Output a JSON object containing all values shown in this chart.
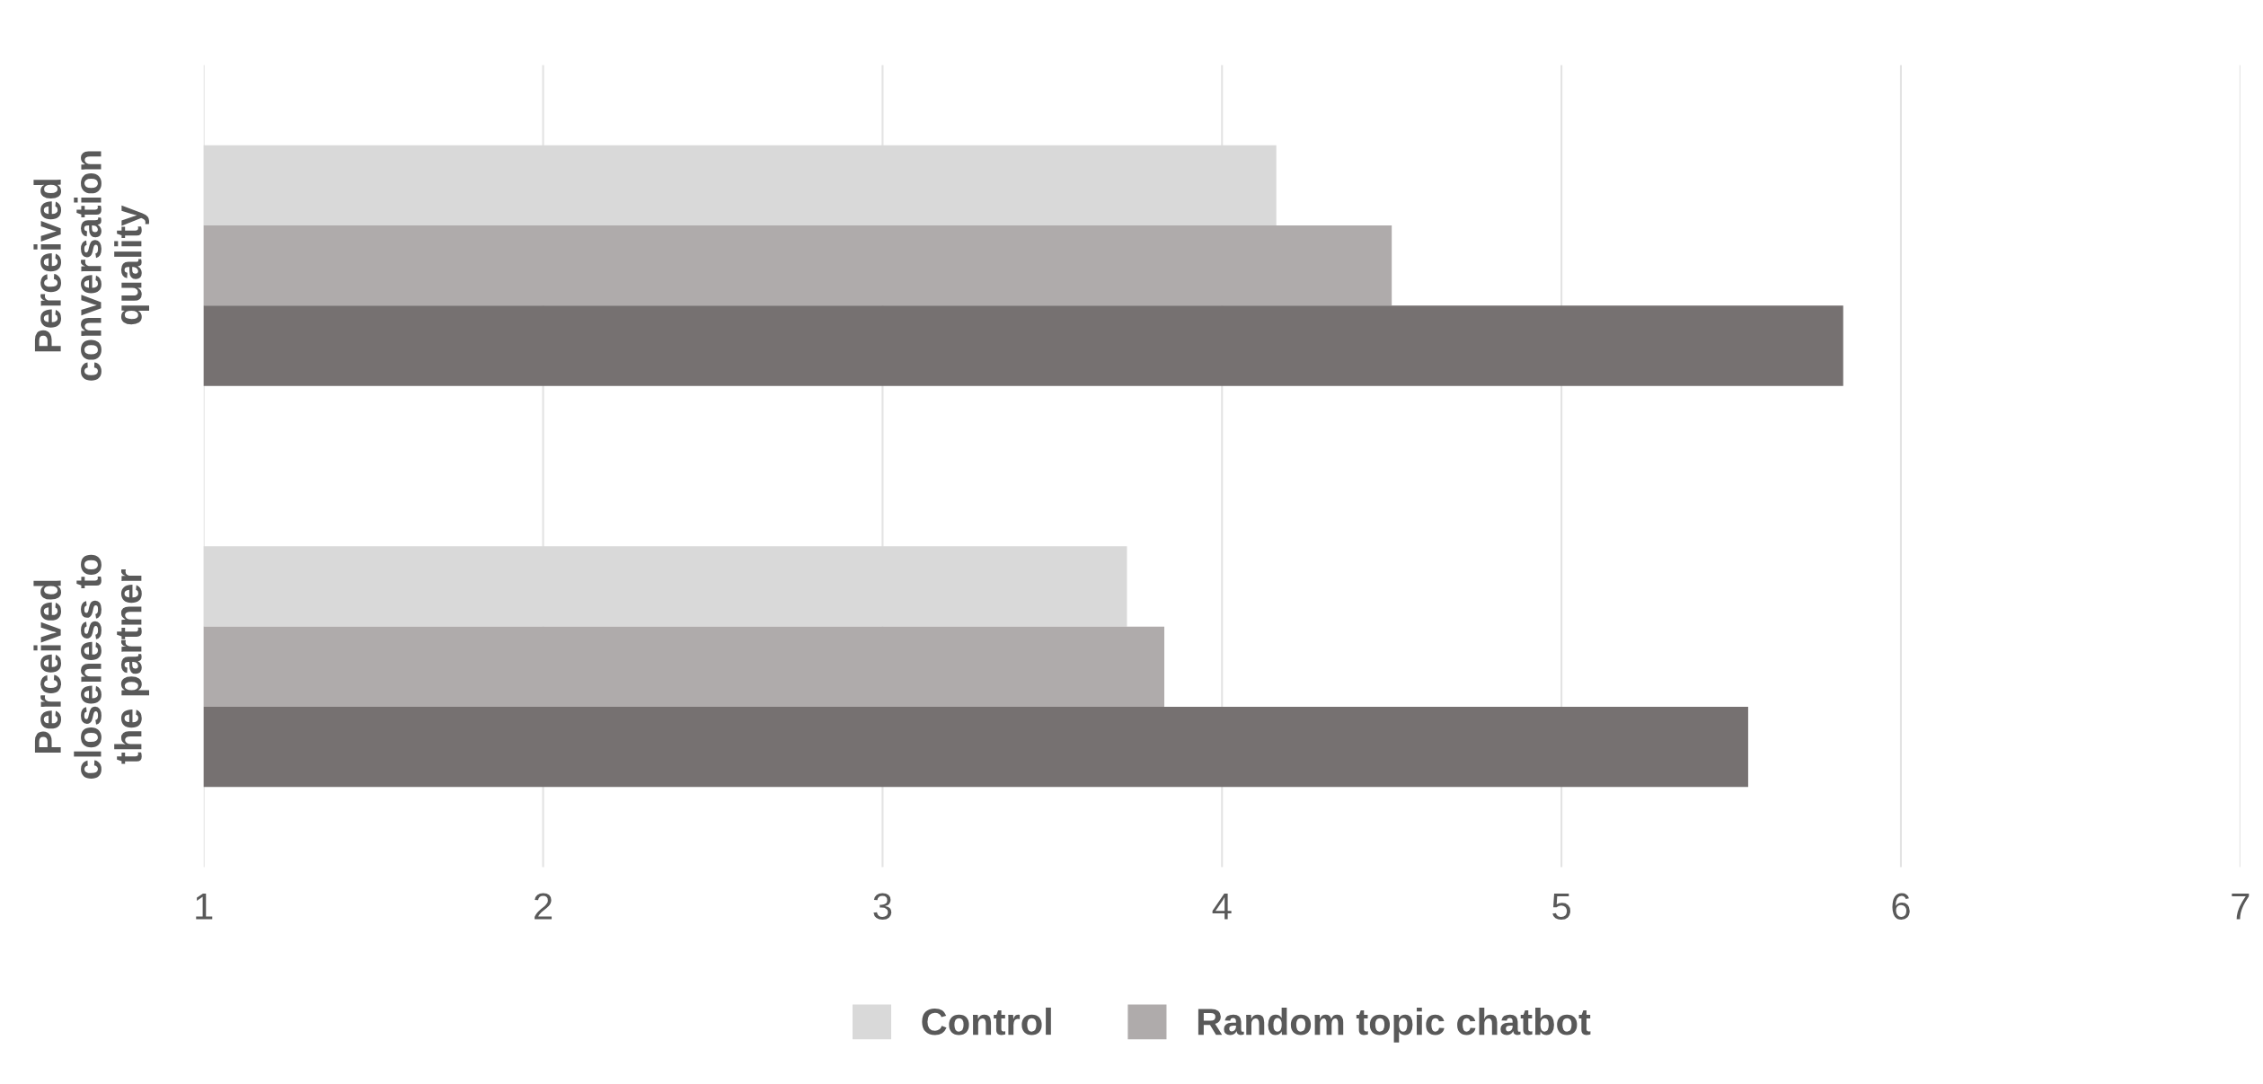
{
  "chart_data": {
    "type": "bar",
    "orientation": "horizontal",
    "categories": [
      "Perceived\nconversation\nquality",
      "Perceived\ncloseness to\nthe partner"
    ],
    "series": [
      {
        "name": "Control",
        "color": "#d9d9d9",
        "values": [
          4.16,
          3.72
        ]
      },
      {
        "name": "Random topic chatbot",
        "color": "#afabab",
        "values": [
          4.5,
          3.83
        ]
      },
      {
        "color": "#767171",
        "values": [
          5.83,
          5.55
        ]
      }
    ],
    "xlim": [
      1,
      7
    ],
    "xticks": [
      1,
      2,
      3,
      4,
      5,
      6,
      7
    ],
    "grid": "x",
    "legend": "bottom"
  }
}
